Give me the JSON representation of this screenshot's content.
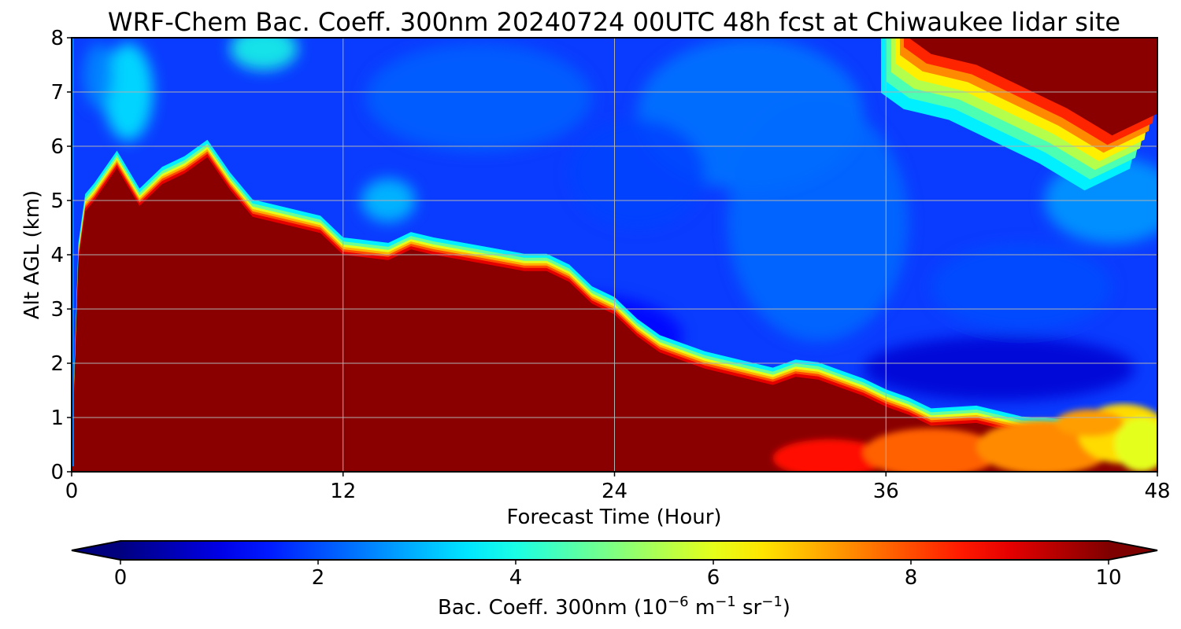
{
  "chart_data": {
    "type": "heatmap",
    "title": "WRF-Chem Bac. Coeff. 300nm  20240724 00UTC 48h fcst at Chiwaukee lidar site",
    "xlabel": "Forecast Time (Hour)",
    "ylabel": "Alt AGL (km)",
    "xlim": [
      0,
      48
    ],
    "ylim": [
      0,
      8
    ],
    "x_ticks": [
      0,
      12,
      24,
      36,
      48
    ],
    "y_ticks": [
      0,
      1,
      2,
      3,
      4,
      5,
      6,
      7,
      8
    ],
    "grid": true,
    "colormap": "jet",
    "colorbar": {
      "label_main": "Bac. Coeff. 300nm  (10",
      "label_exp1": "−6",
      "label_mid": " m",
      "label_exp2": "−1",
      "label_mid2": " sr",
      "label_exp3": "−1",
      "label_end": ")",
      "range": [
        0,
        10
      ],
      "ticks": [
        0,
        2,
        4,
        6,
        8,
        10
      ],
      "extend": "both",
      "min_color": "#00007f",
      "max_color": "#7f0000"
    },
    "aerosol_top_km": {
      "hours": [
        0,
        0.3,
        0.6,
        1,
        2,
        3,
        4,
        5,
        6,
        7,
        8,
        9,
        10,
        11,
        12,
        13,
        14,
        15,
        16,
        18,
        20,
        21,
        22,
        23,
        24,
        25,
        26,
        27,
        28,
        30,
        31,
        32,
        33,
        34,
        35,
        36,
        37,
        38,
        40,
        42,
        44,
        46,
        48
      ],
      "heights": [
        0.1,
        3.9,
        4.8,
        5.0,
        5.6,
        4.9,
        5.3,
        5.5,
        5.8,
        5.2,
        4.7,
        4.6,
        4.5,
        4.4,
        4.0,
        3.95,
        3.9,
        4.1,
        4.0,
        3.85,
        3.7,
        3.7,
        3.5,
        3.1,
        2.9,
        2.5,
        2.2,
        2.05,
        1.9,
        1.7,
        1.6,
        1.75,
        1.7,
        1.55,
        1.4,
        1.2,
        1.05,
        0.85,
        0.9,
        0.7,
        0.65,
        0.6,
        0.6
      ]
    },
    "upper_plume_bottom_km": {
      "hours": [
        37,
        38,
        40,
        42,
        44,
        46,
        48
      ],
      "heights": [
        8.0,
        7.7,
        7.5,
        7.1,
        6.7,
        6.2,
        6.6
      ]
    }
  }
}
